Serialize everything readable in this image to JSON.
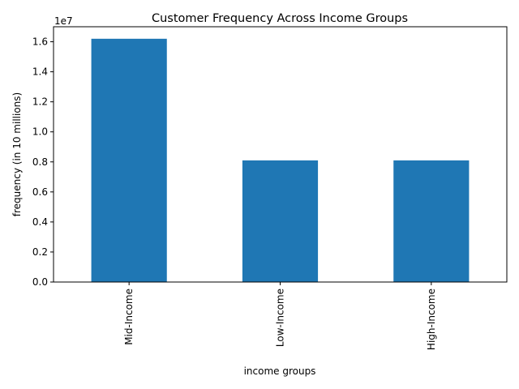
{
  "chart_data": {
    "type": "bar",
    "title": "Customer Frequency Across Income Groups",
    "xlabel": "income groups",
    "ylabel": "frequency (in 10 millions)",
    "y_offset_label": "1e7",
    "y_scale": 10000000,
    "categories": [
      "Mid-Income",
      "Low-Income",
      "High-Income"
    ],
    "values": [
      16200000,
      8100000,
      8100000
    ],
    "ylim": [
      0,
      17000000
    ],
    "yticks": [
      0,
      2000000,
      4000000,
      6000000,
      8000000,
      10000000,
      12000000,
      14000000,
      16000000
    ],
    "ytick_labels": [
      "0.0",
      "0.2",
      "0.4",
      "0.6",
      "0.8",
      "1.0",
      "1.2",
      "1.4",
      "1.6"
    ],
    "bar_color": "#1f77b4",
    "grid": false,
    "legend": "none"
  }
}
